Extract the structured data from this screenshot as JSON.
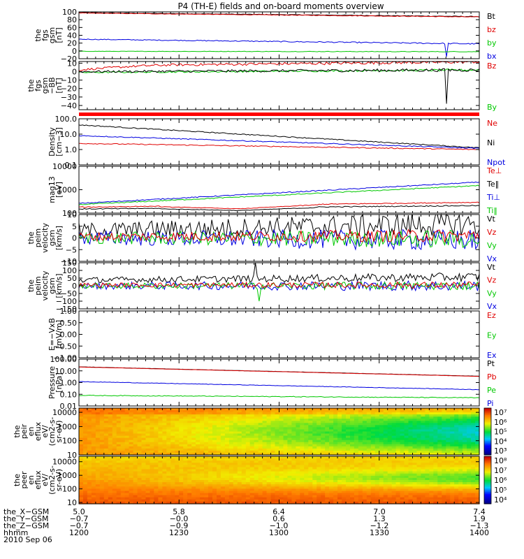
{
  "title": "P4 (TH-E) fields and on-board moments overview",
  "colors": {
    "black": "#000000",
    "red": "#e00000",
    "green": "#00c800",
    "blue": "#0000e0",
    "bar": "#ff0000"
  },
  "chart_data": [
    {
      "type": "line",
      "id": "fgs_hi",
      "ylabel": [
        "the",
        "fgs",
        "gsm",
        "[nT]"
      ],
      "ylim": [
        -20,
        100
      ],
      "ticks": [
        "100",
        "80",
        "60",
        "40",
        "20",
        "0",
        "−20"
      ],
      "legend": [
        {
          "label": "Bt",
          "color": "black"
        },
        {
          "label": "bz",
          "color": "red"
        },
        {
          "label": "by",
          "color": "green"
        },
        {
          "label": "bx",
          "color": "blue"
        }
      ],
      "series": [
        {
          "name": "Bt",
          "color": "black",
          "y0": 98,
          "y1": 88,
          "noise": 0.6
        },
        {
          "name": "bz",
          "color": "red",
          "y0": 97,
          "y1": 87,
          "noise": 0.6
        },
        {
          "name": "bx",
          "color": "blue",
          "y0": 30,
          "y1": 18,
          "noise": 1.0,
          "spike": {
            "x": 0.92,
            "v": -15
          }
        },
        {
          "name": "by",
          "color": "green",
          "y0": -1,
          "y1": -2,
          "noise": 0.5
        }
      ]
    },
    {
      "type": "line",
      "id": "fgs_lo",
      "ylabel": [
        "the",
        "fgs",
        "gsm",
        "−BB",
        "[nT]"
      ],
      "ylim": [
        -45,
        12
      ],
      "ticks": [
        "10",
        "0",
        "−10",
        "−20",
        "−30",
        "−40"
      ],
      "legend": [
        {
          "label": "Bz",
          "color": "red"
        },
        {
          "label": "By",
          "color": "green"
        }
      ],
      "series": [
        {
          "name": "Bz",
          "color": "red",
          "y0": 2,
          "y1": 7,
          "noise": 1.2,
          "bump": 8
        },
        {
          "name": "By",
          "color": "green",
          "y0": -1,
          "y1": 2,
          "noise": 0.8
        },
        {
          "name": "bk",
          "color": "black",
          "y0": 0,
          "y1": 2,
          "noise": 1.2,
          "spike": {
            "x": 0.92,
            "v": -38
          }
        }
      ]
    },
    {
      "type": "line",
      "id": "density",
      "ylabel": [
        "Density",
        "[cm−3]"
      ],
      "log": true,
      "ylim": [
        0.1,
        100
      ],
      "ticks": [
        "100.0",
        "10.0",
        "1.0",
        "0.1"
      ],
      "legend": [
        {
          "label": "Ne",
          "color": "red"
        },
        {
          "label": "Ni",
          "color": "black"
        },
        {
          "label": "Npot",
          "color": "blue"
        }
      ],
      "series": [
        {
          "name": "Ni",
          "color": "black",
          "y0": 40,
          "y1": 1.3,
          "noise": 0.03
        },
        {
          "name": "Ne",
          "color": "red",
          "y0": 2.5,
          "y1": 1.0,
          "noise": 0.03
        },
        {
          "name": "Npot",
          "color": "blue",
          "y0": 8,
          "y1": 1.2,
          "noise": 0.03
        }
      ]
    },
    {
      "type": "line",
      "id": "temp",
      "ylabel": [
        "mag13",
        "[eV]"
      ],
      "log": true,
      "ylim": [
        100,
        10000
      ],
      "ticks": [
        "10000",
        "1000",
        "100"
      ],
      "legend": [
        {
          "label": "Te⊥",
          "color": "red"
        },
        {
          "label": "Te‖",
          "color": "black"
        },
        {
          "label": "Ti⊥",
          "color": "blue"
        },
        {
          "label": "Ti‖",
          "color": "green"
        }
      ],
      "series": [
        {
          "name": "Ti⊥",
          "color": "blue",
          "y0": 260,
          "y1": 2100,
          "noise": 0.02
        },
        {
          "name": "Ti‖",
          "color": "green",
          "y0": 230,
          "y1": 1500,
          "noise": 0.02
        },
        {
          "name": "Te⊥",
          "color": "red",
          "y0": 180,
          "y1": 290,
          "noise": 0.02,
          "dip": 0.7
        },
        {
          "name": "Te‖",
          "color": "black",
          "y0": 150,
          "y1": 210,
          "noise": 0.02,
          "dip": 0.75
        }
      ]
    },
    {
      "type": "line",
      "id": "velgsm",
      "ylabel": [
        "the",
        "peim",
        "velocity",
        "gsm",
        "[km/s]"
      ],
      "ylim": [
        -10,
        10
      ],
      "ticks": [
        "10",
        "5",
        "0",
        "−5",
        "−10"
      ],
      "legend": [
        {
          "label": "Vt",
          "color": "black"
        },
        {
          "label": "Vz",
          "color": "red"
        },
        {
          "label": "Vy",
          "color": "green"
        },
        {
          "label": "Vx",
          "color": "blue"
        }
      ],
      "series": [
        {
          "name": "Vt",
          "color": "black",
          "y0": 2,
          "y1": 5,
          "noise": 3.5,
          "abs": true
        },
        {
          "name": "Vx",
          "color": "blue",
          "y0": 0,
          "y1": -1,
          "noise": 3.0
        },
        {
          "name": "Vy",
          "color": "green",
          "y0": 0,
          "y1": -0.5,
          "noise": 2.5
        },
        {
          "name": "Vz",
          "color": "red",
          "y0": 0.5,
          "y1": 1,
          "noise": 1.8
        }
      ]
    },
    {
      "type": "line",
      "id": "velgsm2",
      "ylabel": [
        "the",
        "peim",
        "velocity",
        "gsm",
        "[km/s]"
      ],
      "ylim": [
        -150,
        150
      ],
      "ticks": [
        "150",
        "100",
        "50",
        "0",
        "−50",
        "−100",
        "−150"
      ],
      "legend": [
        {
          "label": "Vt",
          "color": "black"
        },
        {
          "label": "Vz",
          "color": "red"
        },
        {
          "label": "Vy",
          "color": "green"
        },
        {
          "label": "Vx",
          "color": "blue"
        }
      ],
      "series": [
        {
          "name": "Vt",
          "color": "black",
          "y0": 25,
          "y1": 45,
          "noise": 18,
          "abs": true,
          "spike": {
            "x": 0.44,
            "v": 150
          }
        },
        {
          "name": "Vx",
          "color": "blue",
          "y0": 0,
          "y1": 0,
          "noise": 22
        },
        {
          "name": "Vy",
          "color": "green",
          "y0": 0,
          "y1": 0,
          "noise": 18,
          "spike": {
            "x": 0.45,
            "v": -100
          }
        },
        {
          "name": "Vz",
          "color": "red",
          "y0": 5,
          "y1": 5,
          "noise": 14
        }
      ]
    },
    {
      "type": "line",
      "id": "efield",
      "ylabel": [
        "E=−VxB",
        "[mV/m]"
      ],
      "ylim": [
        -1,
        1
      ],
      "ticks": [
        "1.00",
        "0.50",
        "0.00",
        "−0.50",
        "−1.00"
      ],
      "legend": [
        {
          "label": "Ez",
          "color": "red"
        },
        {
          "label": "Ey",
          "color": "green"
        },
        {
          "label": "Ex",
          "color": "blue"
        }
      ],
      "series": []
    },
    {
      "type": "line",
      "id": "pressure",
      "ylabel": [
        "Pressure",
        "[nPa]"
      ],
      "log": true,
      "ylim": [
        0.01,
        100
      ],
      "ticks": [
        "100.00",
        "10.00",
        "1.00",
        "0.10",
        "0.01"
      ],
      "legend": [
        {
          "label": "Pt",
          "color": "black"
        },
        {
          "label": "Pb",
          "color": "red"
        },
        {
          "label": "Pe",
          "color": "green"
        },
        {
          "label": "Pi",
          "color": "blue"
        }
      ],
      "series": [
        {
          "name": "Pt",
          "color": "black",
          "y0": 22,
          "y1": 3.5,
          "noise": 0.01
        },
        {
          "name": "Pb",
          "color": "red",
          "y0": 21.5,
          "y1": 3.4,
          "noise": 0.01
        },
        {
          "name": "Pi",
          "color": "blue",
          "y0": 1.2,
          "y1": 0.25,
          "noise": 0.02
        },
        {
          "name": "Pe",
          "color": "green",
          "y0": 0.08,
          "y1": 0.05,
          "noise": 0.03
        }
      ]
    },
    {
      "type": "heatmap",
      "id": "eflux_i",
      "ylabel": [
        "the",
        "peir",
        "en",
        "eflux",
        "eV/",
        "(cm2-s-",
        "sr-eV)"
      ],
      "log": true,
      "ylim": [
        10,
        20000
      ],
      "ticks": [
        "10000",
        "1000",
        "100",
        "10"
      ],
      "colorbar": {
        "ticks": [
          "10⁷",
          "10⁶",
          "10⁵",
          "10⁴",
          "10³"
        ],
        "range": [
          3,
          7.5
        ]
      }
    },
    {
      "type": "heatmap",
      "id": "eflux_e",
      "ylabel": [
        "the",
        "peer",
        "en",
        "eflux",
        "eV/",
        "(cm2-s-",
        "sr-eV)"
      ],
      "log": true,
      "ylim": [
        8,
        25000
      ],
      "ticks": [
        "10000",
        "1000",
        "100",
        "10"
      ],
      "colorbar": {
        "ticks": [
          "10⁸",
          "10⁷",
          "10⁶",
          "10⁵",
          "10⁴"
        ],
        "range": [
          3.5,
          8.2
        ]
      }
    }
  ],
  "xaxis": {
    "rows": [
      {
        "label": "the_X−GSM",
        "values": [
          "5.0",
          "5.8",
          "6.4",
          "7.0",
          "7.4"
        ]
      },
      {
        "label": "the_Y−GSM",
        "values": [
          "−0.7",
          "−0.0",
          "0.6",
          "1.3",
          "1.9"
        ]
      },
      {
        "label": "the_Z−GSM",
        "values": [
          "−0.7",
          "−0.9",
          "−1.0",
          "−1.2",
          "−1.3"
        ]
      },
      {
        "label": "hhmm",
        "values": [
          "1200",
          "1230",
          "1300",
          "1330",
          "1400"
        ]
      }
    ],
    "date": "2010 Sep 06"
  }
}
